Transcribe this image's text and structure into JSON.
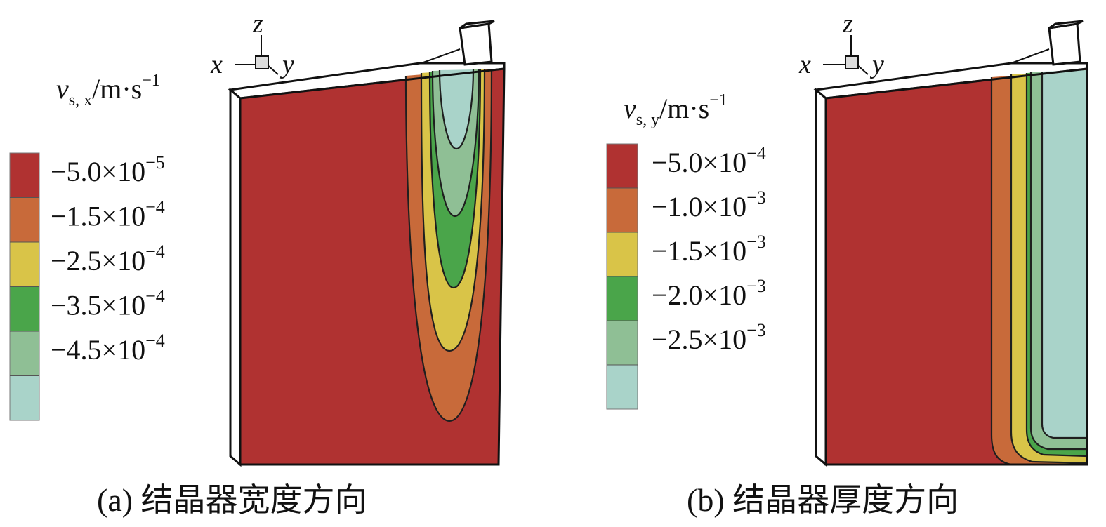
{
  "panels": [
    {
      "id": "a",
      "caption": "(a) 结晶器宽度方向",
      "colorbar": {
        "var_symbol": "v",
        "var_subscript": "s, x",
        "unit": "/m·s",
        "unit_exp": "−1",
        "levels": [
          {
            "mantissa": "−5.0×10",
            "exp": "−5",
            "color": "#b03231"
          },
          {
            "mantissa": "−1.5×10",
            "exp": "−4",
            "color": "#c86a3a"
          },
          {
            "mantissa": "−2.5×10",
            "exp": "−4",
            "color": "#d9c448"
          },
          {
            "mantissa": "−3.5×10",
            "exp": "−4",
            "color": "#4aa54a"
          },
          {
            "mantissa": "−4.5×10",
            "exp": "−4",
            "color": "#8fbf95"
          }
        ],
        "band_colors": [
          "#b03231",
          "#c86a3a",
          "#d9c448",
          "#4aa54a",
          "#8fbf95",
          "#a9d3c9"
        ]
      },
      "axes": {
        "z": "z",
        "x": "x",
        "y": "y"
      }
    },
    {
      "id": "b",
      "caption": "(b) 结晶器厚度方向",
      "colorbar": {
        "var_symbol": "v",
        "var_subscript": "s, y",
        "unit": "/m·s",
        "unit_exp": "−1",
        "levels": [
          {
            "mantissa": "−5.0×10",
            "exp": "−4",
            "color": "#b03231"
          },
          {
            "mantissa": "−1.0×10",
            "exp": "−3",
            "color": "#c86a3a"
          },
          {
            "mantissa": "−1.5×10",
            "exp": "−3",
            "color": "#d9c448"
          },
          {
            "mantissa": "−2.0×10",
            "exp": "−3",
            "color": "#4aa54a"
          },
          {
            "mantissa": "−2.5×10",
            "exp": "−3",
            "color": "#8fbf95"
          }
        ],
        "band_colors": [
          "#b03231",
          "#c86a3a",
          "#d9c448",
          "#4aa54a",
          "#8fbf95",
          "#a9d3c9"
        ]
      },
      "axes": {
        "z": "z",
        "x": "x",
        "y": "y"
      }
    }
  ]
}
